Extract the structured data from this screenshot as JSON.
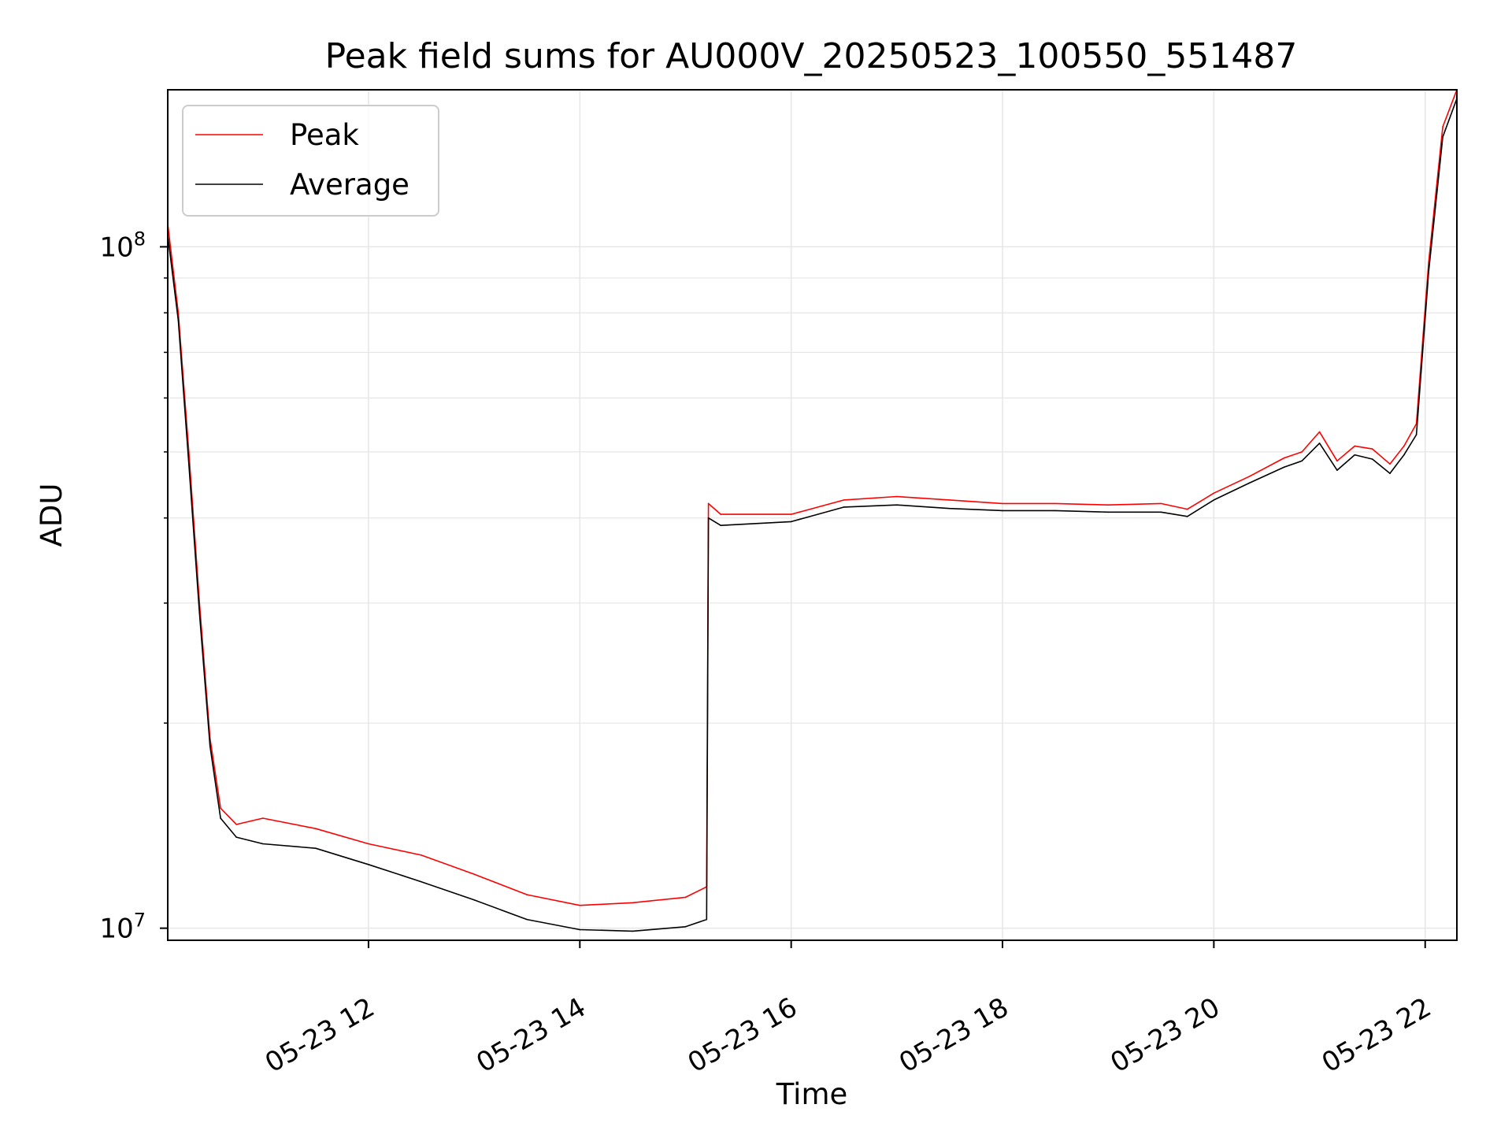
{
  "chart_data": {
    "type": "line",
    "title": "Peak field sums for AU000V_20250523_100550_551487",
    "xlabel": "Time",
    "ylabel": "ADU",
    "yscale": "log",
    "ylim": [
      9600000,
      170000000
    ],
    "xlim": [
      "2025-05-23 10:06",
      "2025-05-23 22:18"
    ],
    "x_ticks": [
      "2025-05-23 12:00",
      "2025-05-23 14:00",
      "2025-05-23 16:00",
      "2025-05-23 18:00",
      "2025-05-23 20:00",
      "2025-05-23 22:00"
    ],
    "x_tick_labels": [
      "05-23 12",
      "05-23 14",
      "05-23 16",
      "05-23 18",
      "05-23 20",
      "05-23 22"
    ],
    "y_major_ticks": [
      10000000,
      100000000
    ],
    "y_tick_labels": [
      {
        "base": "10",
        "exp": "7"
      },
      {
        "base": "10",
        "exp": "8"
      }
    ],
    "grid": true,
    "legend_position": "top-left",
    "colors": {
      "peak": "#ff0000",
      "average": "#000000",
      "grid": "#e6e6e6"
    },
    "series": [
      {
        "name": "Peak",
        "color": "#ff0000",
        "x": [
          "2025-05-23 10:06",
          "2025-05-23 10:12",
          "2025-05-23 10:18",
          "2025-05-23 10:24",
          "2025-05-23 10:30",
          "2025-05-23 10:36",
          "2025-05-23 10:45",
          "2025-05-23 11:00",
          "2025-05-23 11:30",
          "2025-05-23 12:00",
          "2025-05-23 12:30",
          "2025-05-23 13:00",
          "2025-05-23 13:30",
          "2025-05-23 14:00",
          "2025-05-23 14:30",
          "2025-05-23 15:00",
          "2025-05-23 15:12",
          "2025-05-23 15:13",
          "2025-05-23 15:20",
          "2025-05-23 16:00",
          "2025-05-23 16:30",
          "2025-05-23 17:00",
          "2025-05-23 17:30",
          "2025-05-23 18:00",
          "2025-05-23 18:30",
          "2025-05-23 19:00",
          "2025-05-23 19:30",
          "2025-05-23 19:45",
          "2025-05-23 20:00",
          "2025-05-23 20:20",
          "2025-05-23 20:40",
          "2025-05-23 20:50",
          "2025-05-23 21:00",
          "2025-05-23 21:10",
          "2025-05-23 21:20",
          "2025-05-23 21:30",
          "2025-05-23 21:40",
          "2025-05-23 21:48",
          "2025-05-23 21:55",
          "2025-05-23 22:02",
          "2025-05-23 22:10",
          "2025-05-23 22:18"
        ],
        "values": [
          108000000,
          80000000,
          50000000,
          30000000,
          19000000,
          15000000,
          14200000,
          14500000,
          14000000,
          13300000,
          12800000,
          12000000,
          11200000,
          10800000,
          10900000,
          11100000,
          11500000,
          42000000,
          40500000,
          40500000,
          42500000,
          43000000,
          42500000,
          42000000,
          42000000,
          41800000,
          42000000,
          41200000,
          43500000,
          46000000,
          49000000,
          50000000,
          53500000,
          48500000,
          51000000,
          50500000,
          48000000,
          51000000,
          55000000,
          95000000,
          150000000,
          170000000
        ]
      },
      {
        "name": "Average",
        "color": "#000000",
        "x": [
          "2025-05-23 10:06",
          "2025-05-23 10:12",
          "2025-05-23 10:18",
          "2025-05-23 10:24",
          "2025-05-23 10:30",
          "2025-05-23 10:36",
          "2025-05-23 10:45",
          "2025-05-23 11:00",
          "2025-05-23 11:30",
          "2025-05-23 12:00",
          "2025-05-23 12:30",
          "2025-05-23 13:00",
          "2025-05-23 13:30",
          "2025-05-23 14:00",
          "2025-05-23 14:30",
          "2025-05-23 15:00",
          "2025-05-23 15:12",
          "2025-05-23 15:13",
          "2025-05-23 15:20",
          "2025-05-23 16:00",
          "2025-05-23 16:30",
          "2025-05-23 17:00",
          "2025-05-23 17:30",
          "2025-05-23 18:00",
          "2025-05-23 18:30",
          "2025-05-23 19:00",
          "2025-05-23 19:30",
          "2025-05-23 19:45",
          "2025-05-23 20:00",
          "2025-05-23 20:20",
          "2025-05-23 20:40",
          "2025-05-23 20:50",
          "2025-05-23 21:00",
          "2025-05-23 21:10",
          "2025-05-23 21:20",
          "2025-05-23 21:30",
          "2025-05-23 21:40",
          "2025-05-23 21:48",
          "2025-05-23 21:55",
          "2025-05-23 22:02",
          "2025-05-23 22:10",
          "2025-05-23 22:18"
        ],
        "values": [
          104000000,
          78000000,
          48000000,
          29000000,
          18500000,
          14500000,
          13600000,
          13300000,
          13100000,
          12400000,
          11700000,
          11000000,
          10300000,
          9950000,
          9900000,
          10050000,
          10300000,
          40000000,
          39000000,
          39500000,
          41500000,
          41800000,
          41300000,
          41000000,
          41000000,
          40800000,
          40800000,
          40200000,
          42500000,
          45000000,
          47500000,
          48500000,
          51500000,
          47000000,
          49500000,
          48800000,
          46500000,
          49500000,
          53000000,
          92000000,
          145000000,
          165000000
        ]
      }
    ]
  }
}
